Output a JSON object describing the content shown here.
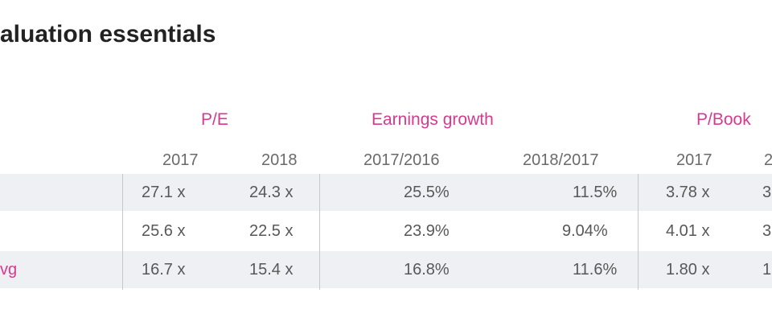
{
  "title": "aluation essentials",
  "groups": {
    "pe": "P/E",
    "eg": "Earnings growth",
    "pb": "P/Book"
  },
  "years": {
    "pe_2017": "2017",
    "pe_2018": "2018",
    "eg_a": "2017/2016",
    "eg_b": "2018/2017",
    "pb_2017": "2017",
    "pb_2018": "2"
  },
  "rows": [
    {
      "label": "",
      "pe_2017": "27.1 x",
      "pe_2018": "24.3 x",
      "eg_a": "25.5%",
      "eg_b": "11.5%",
      "pb_2017": "3.78 x",
      "pb_2018": "3"
    },
    {
      "label": "",
      "pe_2017": "25.6 x",
      "pe_2018": "22.5 x",
      "eg_a": "23.9%",
      "eg_b": "9.04%",
      "pb_2017": "4.01 x",
      "pb_2018": "3"
    },
    {
      "label": "vg",
      "pe_2017": "16.7 x",
      "pe_2018": "15.4 x",
      "eg_a": "16.8%",
      "eg_b": "11.6%",
      "pb_2017": "1.80 x",
      "pb_2018": "1"
    }
  ],
  "colors": {
    "accent": "#d63a8e",
    "row_shade": "#eef0f3",
    "title": "#222222",
    "divider": "#c4c7cc"
  }
}
